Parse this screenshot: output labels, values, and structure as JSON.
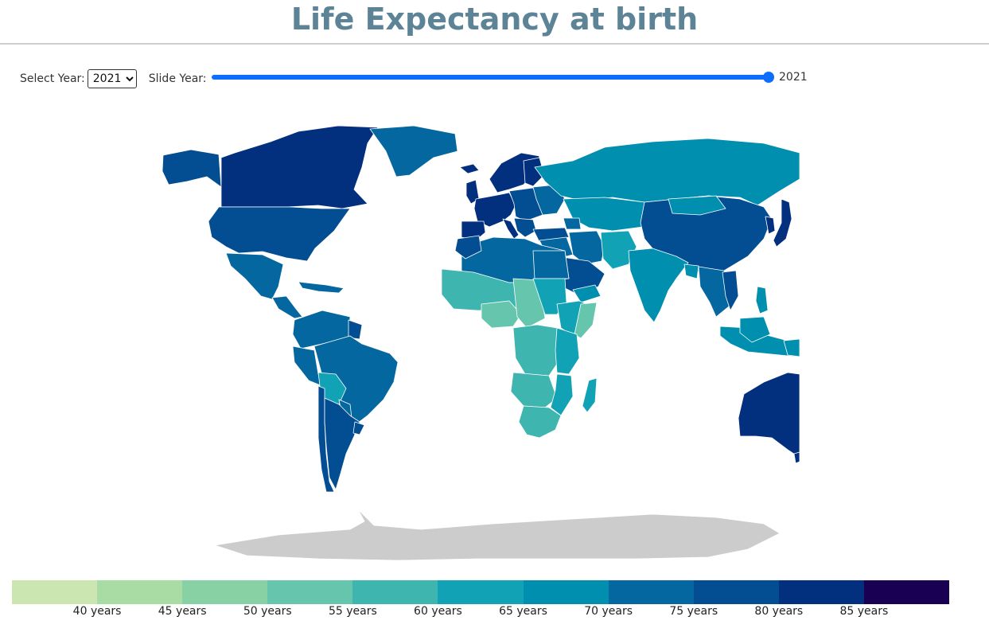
{
  "header": {
    "title": "Life Expectancy at birth"
  },
  "controls": {
    "select_label": "Select Year:",
    "selected_year": "2021",
    "slider_label": "Slide Year:",
    "slider_value": "2021",
    "slider_fraction": 1.0
  },
  "map": {
    "colors": {
      "c_55": "#66c5ad",
      "c_60": "#3fb5b0",
      "c_65": "#11a3b5",
      "c_70": "#018fb0",
      "c_75": "#04679f",
      "c_80": "#034d92",
      "c_85": "#02307f",
      "no_data": "#cccccc"
    }
  },
  "legend": {
    "colors": [
      "#cbe6b0",
      "#a9dba4",
      "#88d1a4",
      "#66c5ad",
      "#3fb5b0",
      "#11a3b5",
      "#018fb0",
      "#04679f",
      "#034d92",
      "#02307f",
      "#1a0052"
    ],
    "labels": [
      "40 years",
      "45 years",
      "50 years",
      "55 years",
      "60 years",
      "65 years",
      "70 years",
      "75 years",
      "80 years",
      "85 years"
    ]
  }
}
